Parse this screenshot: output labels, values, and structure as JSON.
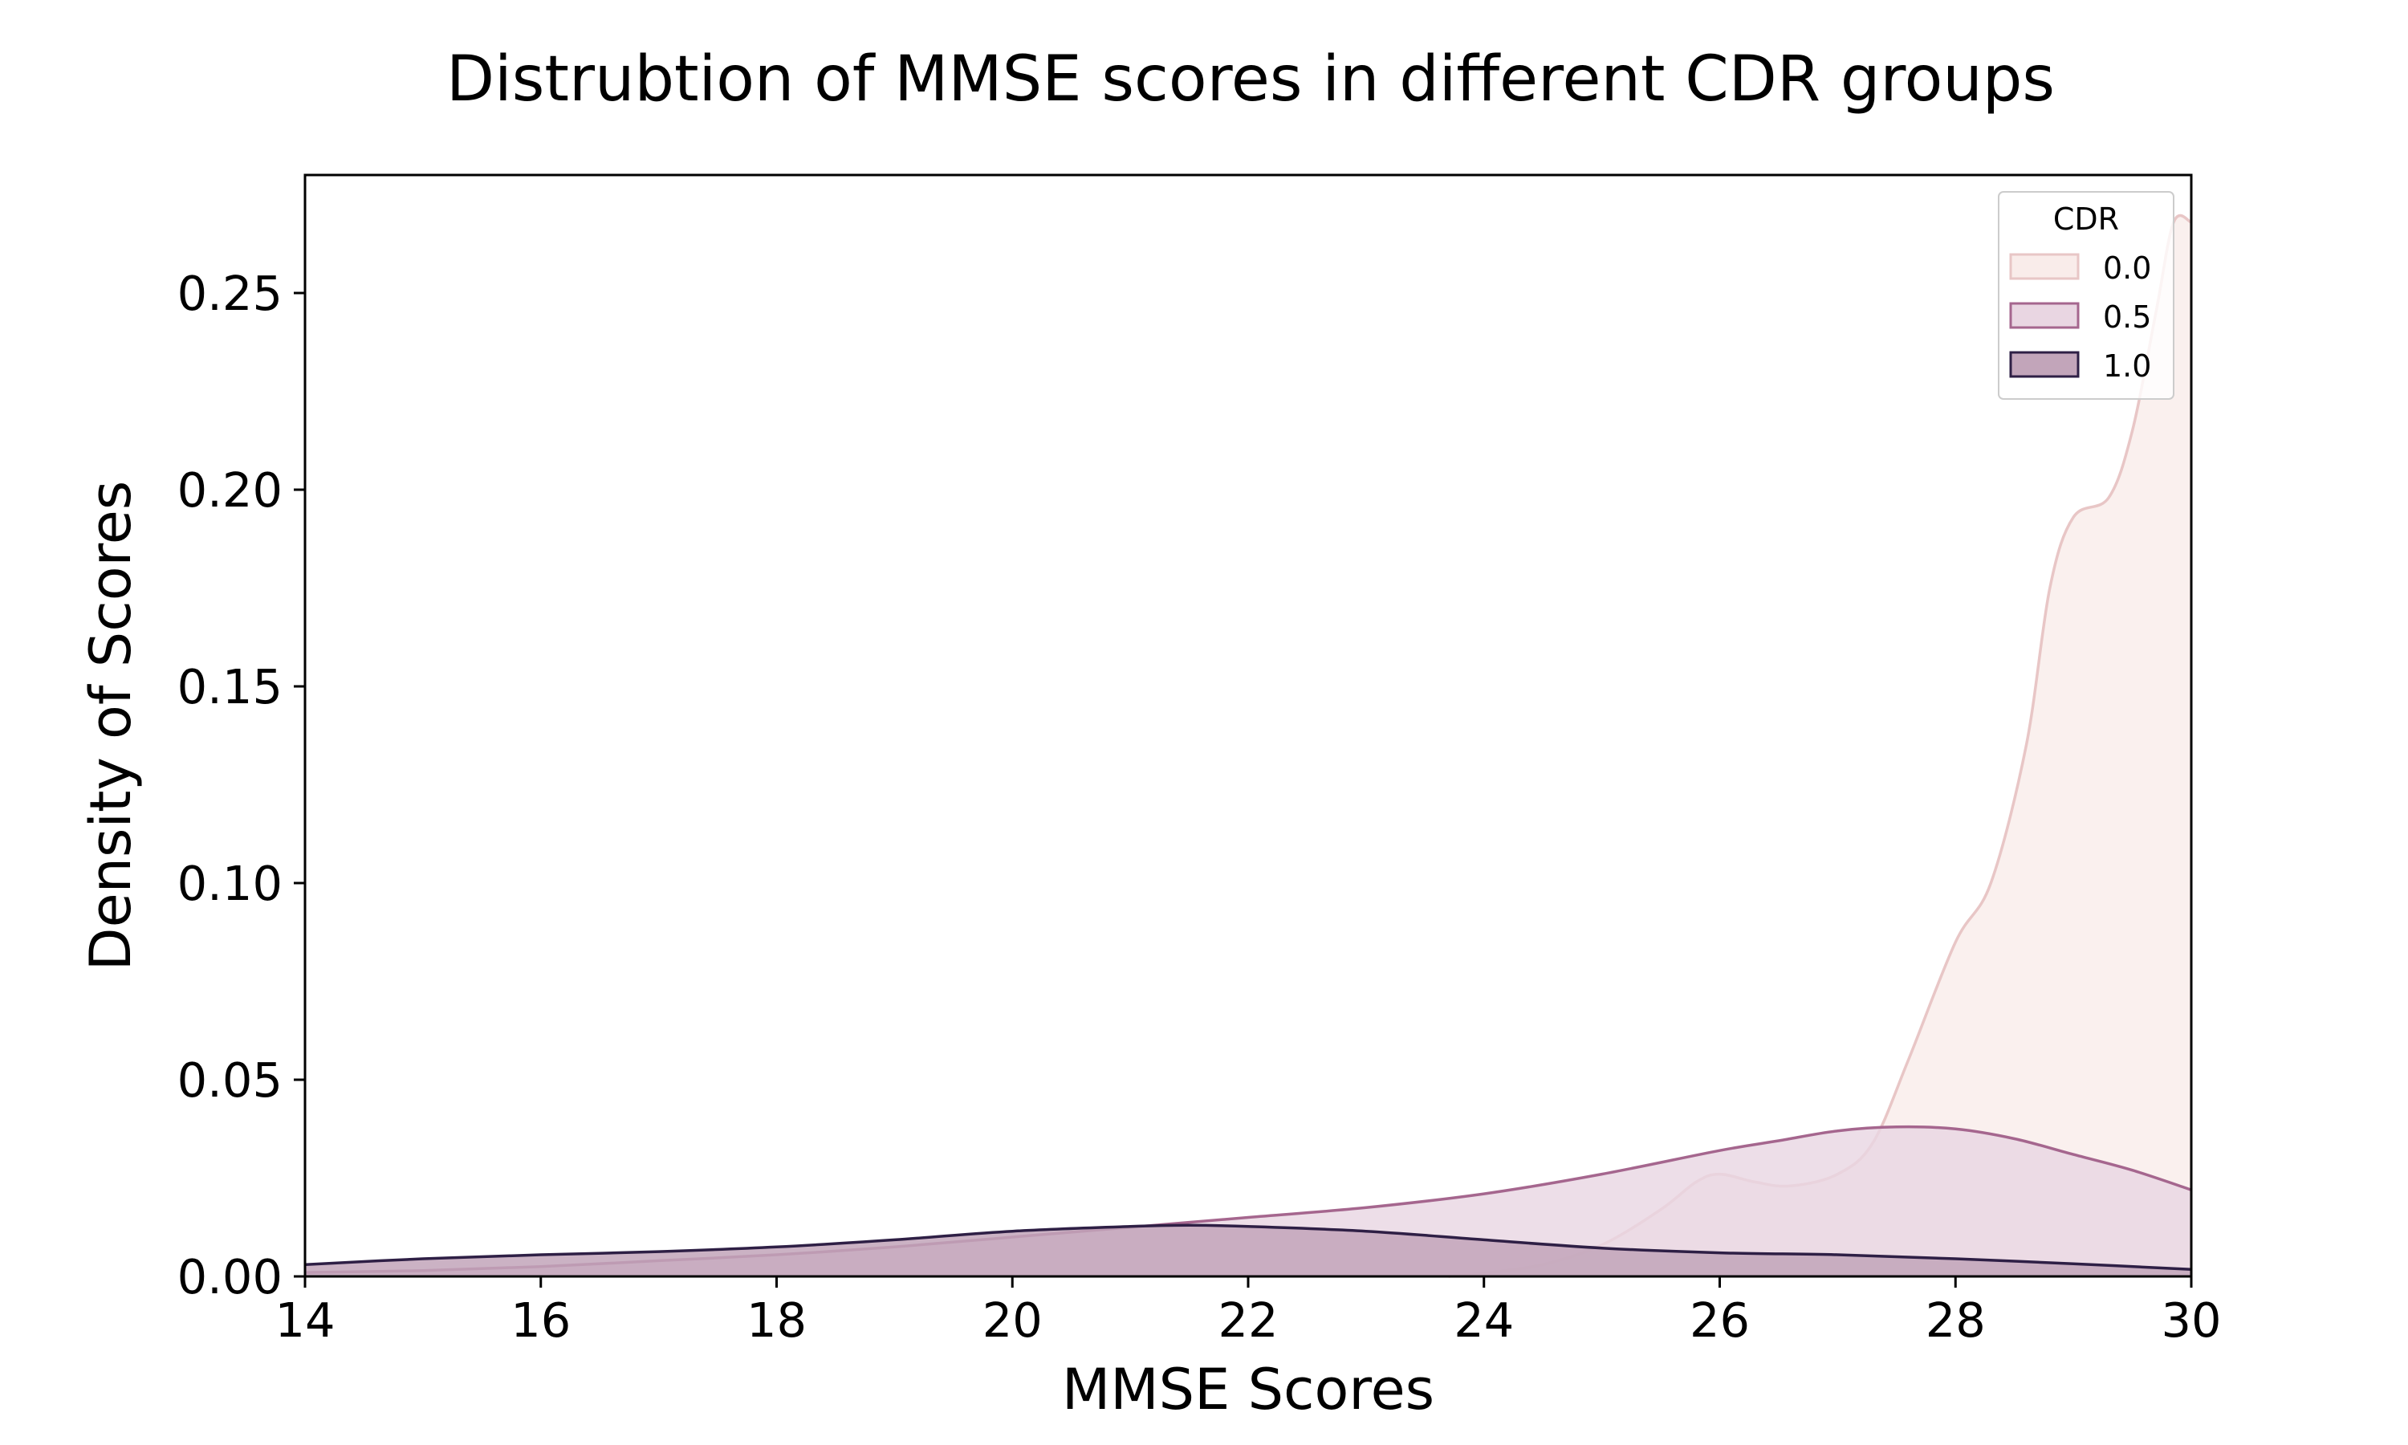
{
  "chart_data": {
    "type": "area",
    "title": "Distrubtion of MMSE scores in different CDR groups",
    "xlabel": "MMSE Scores",
    "ylabel": "Density of Scores",
    "xlim": [
      14,
      30
    ],
    "ylim": [
      0,
      0.28
    ],
    "xticks": [
      "14",
      "16",
      "18",
      "20",
      "22",
      "24",
      "26",
      "28",
      "30"
    ],
    "yticks": [
      "0.00",
      "0.05",
      "0.10",
      "0.15",
      "0.20",
      "0.25"
    ],
    "grid": false,
    "legend": {
      "title": "CDR",
      "placement": "top-right"
    },
    "series": [
      {
        "name": "0.0",
        "color": "#e8c6c6",
        "fill": "#f9ecea",
        "x": [
          23.7,
          24.0,
          24.5,
          25.0,
          25.5,
          25.8,
          26.0,
          26.3,
          26.6,
          27.0,
          27.3,
          27.6,
          28.0,
          28.3,
          28.6,
          28.8,
          29.0,
          29.3,
          29.5,
          29.7,
          29.85,
          30.0
        ],
        "y": [
          0.0,
          0.0008,
          0.003,
          0.008,
          0.017,
          0.024,
          0.026,
          0.024,
          0.023,
          0.026,
          0.034,
          0.055,
          0.085,
          0.1,
          0.135,
          0.175,
          0.193,
          0.198,
          0.215,
          0.245,
          0.268,
          0.268
        ]
      },
      {
        "name": "0.5",
        "color": "#a5668e",
        "fill": "#e9d6e2",
        "x": [
          14,
          15,
          16,
          17,
          18,
          19,
          20,
          21,
          22,
          23,
          24,
          25,
          26,
          26.5,
          27,
          27.5,
          28,
          28.5,
          29,
          29.5,
          30
        ],
        "y": [
          0.001,
          0.0015,
          0.0025,
          0.004,
          0.0055,
          0.0075,
          0.01,
          0.0125,
          0.015,
          0.0175,
          0.021,
          0.026,
          0.032,
          0.0345,
          0.037,
          0.038,
          0.0375,
          0.035,
          0.031,
          0.027,
          0.022
        ]
      },
      {
        "name": "1.0",
        "color": "#2e1f45",
        "fill": "#c2a5ba",
        "x": [
          14,
          15,
          16,
          17,
          18,
          19,
          20,
          21,
          21.5,
          22,
          23,
          24,
          25,
          26,
          27,
          28,
          29,
          30
        ],
        "y": [
          0.003,
          0.0045,
          0.0055,
          0.0063,
          0.0075,
          0.0093,
          0.0115,
          0.0127,
          0.013,
          0.0127,
          0.0115,
          0.0093,
          0.0072,
          0.006,
          0.0055,
          0.0045,
          0.0032,
          0.0018
        ]
      }
    ]
  }
}
